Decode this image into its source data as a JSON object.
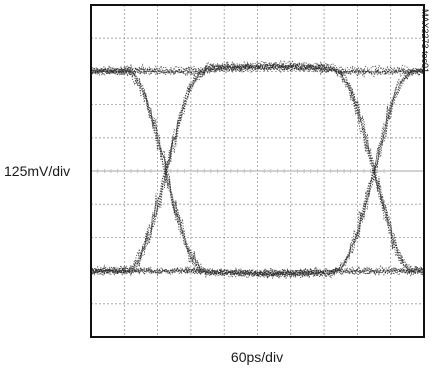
{
  "chart_data": {
    "type": "scatter",
    "xlabel": "60ps/div",
    "ylabel": "125mV/div",
    "figure_id": "MAX3273 toc01",
    "grid": true,
    "divisions": {
      "x": 10,
      "y": 10
    },
    "eye": {
      "unit_interval_ps": 375,
      "crossing_times_ps": [
        135,
        510
      ],
      "high_level_mV": 375,
      "low_level_mV": -375,
      "xlim_ps": [
        0,
        600
      ],
      "ylim_mV": [
        -625,
        625
      ]
    },
    "series": [
      {
        "color": "#2b2b2b"
      }
    ]
  }
}
